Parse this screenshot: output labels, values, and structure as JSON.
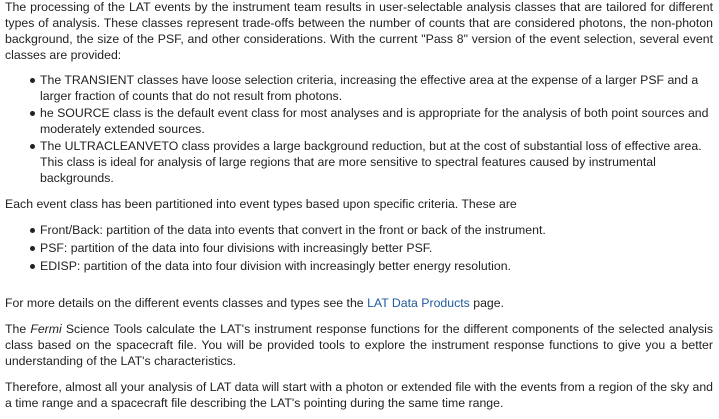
{
  "intro": "The processing of the LAT events by the instrument team results in user-selectable analysis classes that are tailored for different types of analysis. These classes represent trade-offs between the number of counts that are considered photons, the non-photon background, the size of the PSF, and other considerations. With the current \"Pass 8\" version of the event selection, several event classes are provided:",
  "event_classes": [
    "The TRANSIENT classes have loose selection criteria, increasing the effective area at the expense of a larger PSF and a larger fraction of counts that do not result from photons.",
    "he SOURCE class is the default event class for most analyses and is appropriate for the analysis of both point sources and moderately extended sources.",
    "The ULTRACLEANVETO class provides a large background reduction, but at the cost of substantial loss of effective area. This class is ideal for analysis of large regions that are more sensitive to spectral features caused by instrumental backgrounds."
  ],
  "event_types_intro": "Each event class has been partitioned into event types based upon specific criteria. These are",
  "event_types": [
    "Front/Back: partition of the data into events that convert in the front or back of the instrument.",
    "PSF: partition of the data into four divisions with increasingly better PSF.",
    "EDISP: partition of the data into four division with increasingly better energy resolution."
  ],
  "details": {
    "before": "For more details on the different events classes and types see the ",
    "link": "LAT Data Products",
    "after": " page."
  },
  "irf": {
    "before": "The ",
    "emphasis": "Fermi",
    "after": " Science Tools calculate the LAT's instrument response functions for the different components of the selected analysis class based on the spacecraft file. You will be provided tools to explore the instrument response functions to give you a better understanding of the LAT's characteristics."
  },
  "therefore": "Therefore, almost all your analysis of LAT data will start with a photon or extended file with the events from a region of the sky and a time range and a spacecraft file describing the LAT's pointing during the same time range.",
  "colors": {
    "text": "#222222",
    "link": "#1f5a9e",
    "background": "#ffffff"
  }
}
